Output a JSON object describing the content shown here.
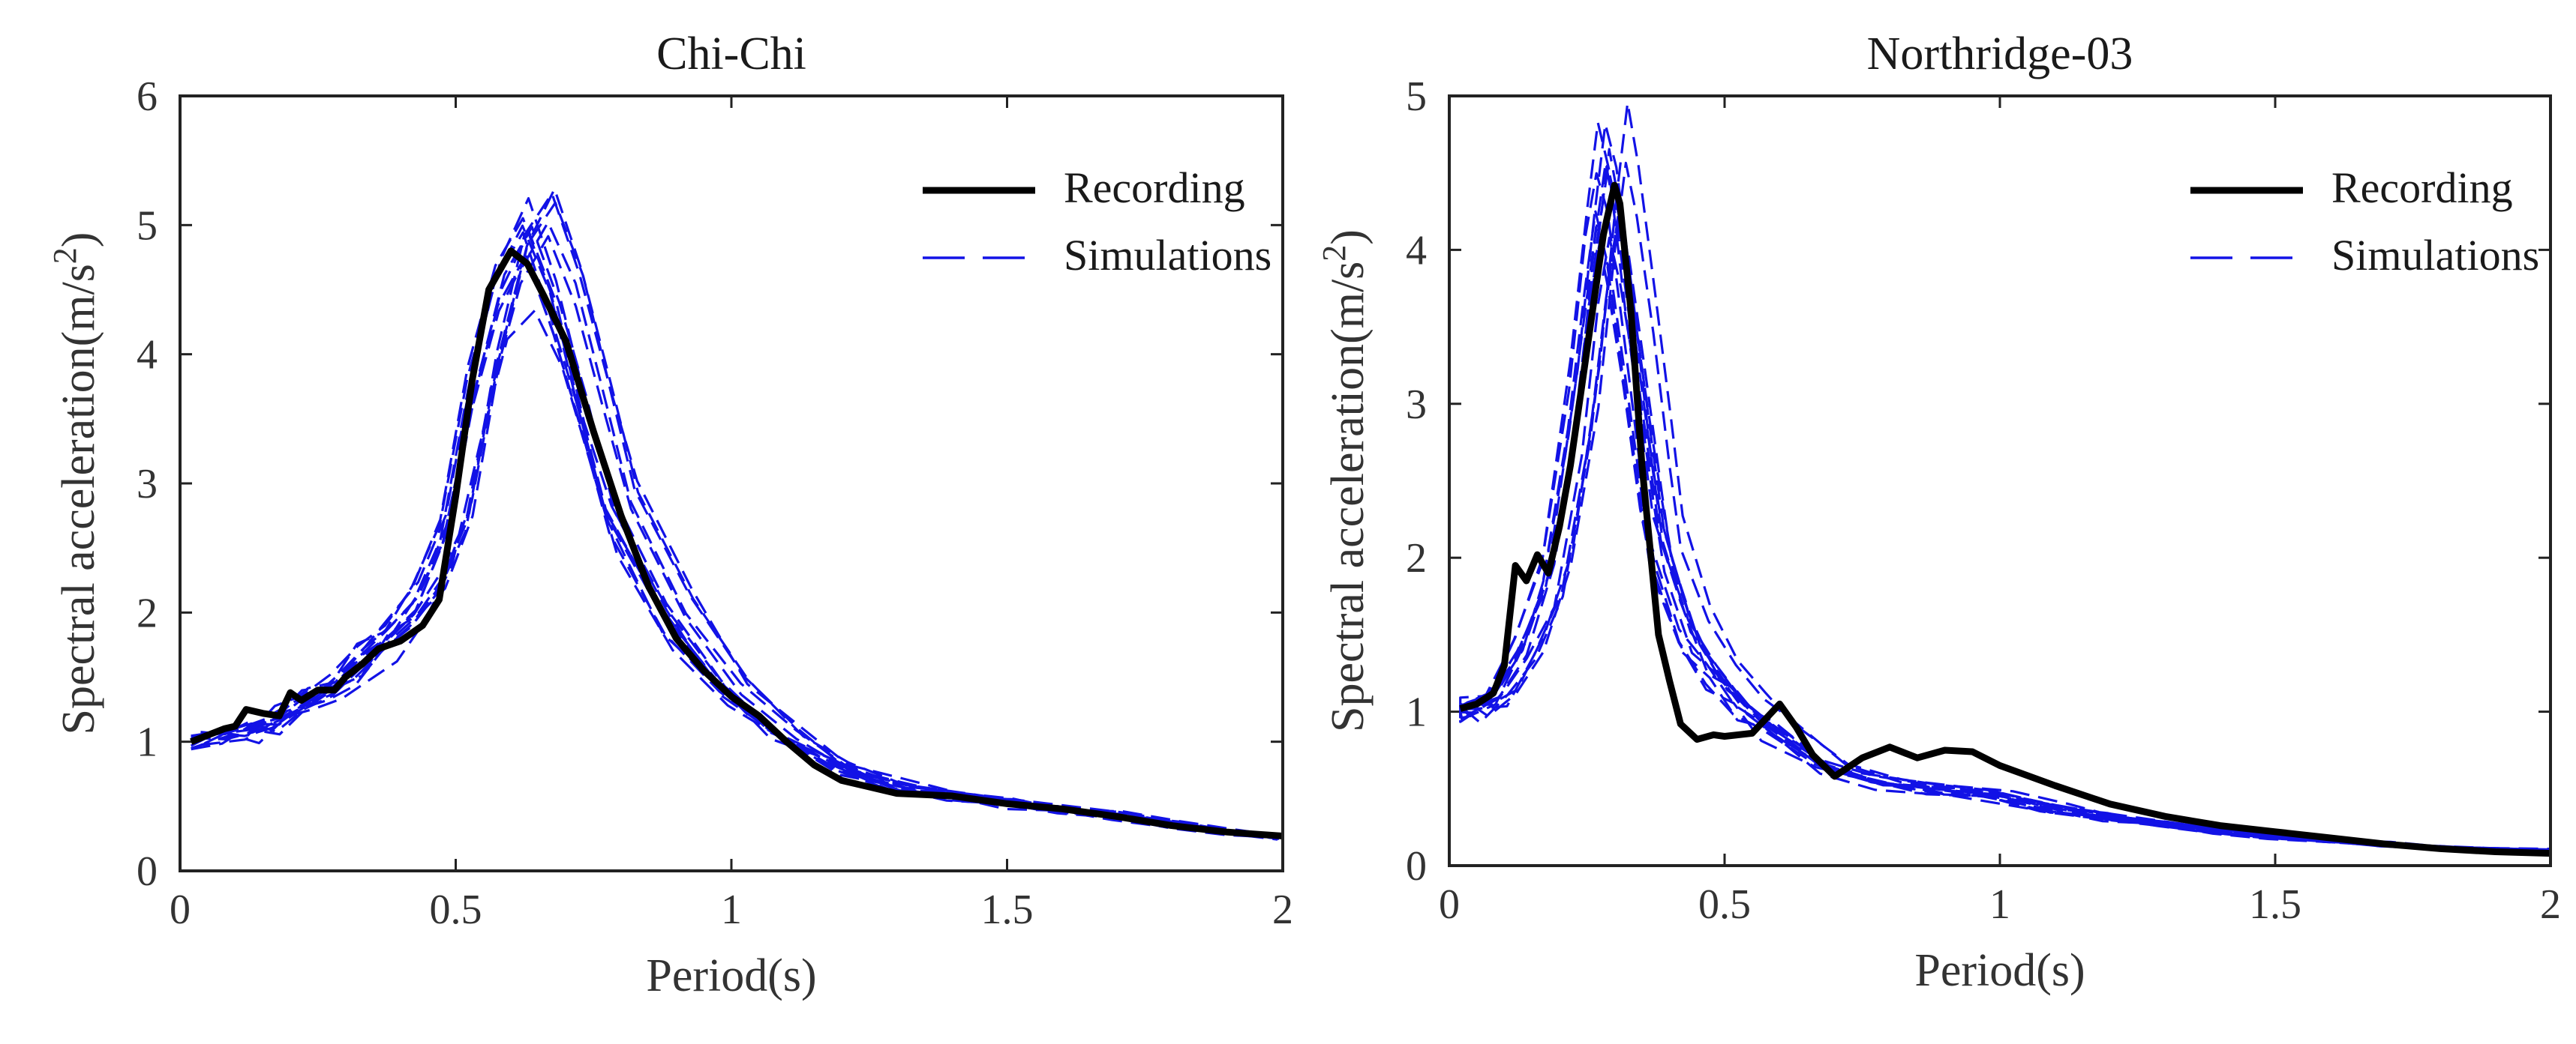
{
  "chart_data": [
    {
      "type": "line",
      "title": "Chi-Chi",
      "xlabel": "Period(s)",
      "ylabel": "Spectral acceleration(m/s",
      "ylabel_sup": "2",
      "ylabel_close": ")",
      "xlim": [
        0,
        2
      ],
      "ylim": [
        0,
        6
      ],
      "xticks": [
        0,
        0.5,
        1,
        1.5,
        2
      ],
      "xtick_labels": [
        "0",
        "0.5",
        "1",
        "1.5",
        "2"
      ],
      "yticks": [
        0,
        1,
        2,
        3,
        4,
        5,
        6
      ],
      "ytick_labels": [
        "0",
        "1",
        "2",
        "3",
        "4",
        "5",
        "6"
      ],
      "legend": {
        "position": "top-right",
        "entries": [
          "Recording",
          "Simulations"
        ]
      },
      "series": [
        {
          "name": "Recording",
          "style": "solid",
          "x": [
            0.02,
            0.05,
            0.08,
            0.1,
            0.12,
            0.15,
            0.18,
            0.2,
            0.22,
            0.25,
            0.28,
            0.3,
            0.33,
            0.36,
            0.4,
            0.44,
            0.47,
            0.5,
            0.53,
            0.56,
            0.6,
            0.63,
            0.66,
            0.7,
            0.75,
            0.8,
            0.85,
            0.9,
            0.95,
            1.0,
            1.05,
            1.1,
            1.15,
            1.2,
            1.3,
            1.4,
            1.5,
            1.6,
            1.7,
            1.8,
            1.9,
            2.0
          ],
          "y": [
            1.0,
            1.05,
            1.1,
            1.12,
            1.25,
            1.22,
            1.2,
            1.38,
            1.32,
            1.4,
            1.4,
            1.5,
            1.6,
            1.72,
            1.78,
            1.9,
            2.1,
            2.9,
            3.8,
            4.5,
            4.8,
            4.7,
            4.45,
            4.1,
            3.4,
            2.75,
            2.2,
            1.8,
            1.55,
            1.35,
            1.2,
            1.0,
            0.82,
            0.7,
            0.6,
            0.58,
            0.52,
            0.48,
            0.42,
            0.35,
            0.3,
            0.27
          ]
        },
        {
          "name": "Simulations",
          "style": "dashed",
          "x": [
            0.02,
            0.1,
            0.15,
            0.2,
            0.25,
            0.3,
            0.35,
            0.4,
            0.45,
            0.5,
            0.55,
            0.6,
            0.65,
            0.7,
            0.75,
            0.8,
            0.9,
            1.0,
            1.1,
            1.2,
            1.3,
            1.4,
            1.5,
            1.6,
            1.7,
            1.8,
            1.9,
            2.0
          ],
          "y": [
            1.0,
            1.05,
            1.08,
            1.2,
            1.35,
            1.45,
            1.65,
            1.85,
            2.1,
            2.6,
            3.7,
            4.5,
            4.85,
            4.3,
            3.5,
            2.75,
            1.95,
            1.4,
            1.05,
            0.8,
            0.65,
            0.58,
            0.52,
            0.47,
            0.42,
            0.36,
            0.3,
            0.26
          ]
        }
      ]
    },
    {
      "type": "line",
      "title": "Northridge-03",
      "xlabel": "Period(s)",
      "ylabel": "Spectral acceleration(m/s",
      "ylabel_sup": "2",
      "ylabel_close": ")",
      "xlim": [
        0,
        2
      ],
      "ylim": [
        0,
        5
      ],
      "xticks": [
        0,
        0.5,
        1,
        1.5,
        2
      ],
      "xtick_labels": [
        "0",
        "0.5",
        "1",
        "1.5",
        "2"
      ],
      "yticks": [
        0,
        1,
        2,
        3,
        4,
        5
      ],
      "ytick_labels": [
        "0",
        "1",
        "2",
        "3",
        "4",
        "5"
      ],
      "legend": {
        "position": "top-right",
        "entries": [
          "Recording",
          "Simulations"
        ]
      },
      "series": [
        {
          "name": "Recording",
          "style": "solid",
          "x": [
            0.02,
            0.05,
            0.08,
            0.1,
            0.12,
            0.14,
            0.16,
            0.18,
            0.2,
            0.22,
            0.24,
            0.26,
            0.28,
            0.3,
            0.31,
            0.33,
            0.35,
            0.38,
            0.4,
            0.42,
            0.45,
            0.48,
            0.5,
            0.55,
            0.6,
            0.63,
            0.66,
            0.7,
            0.75,
            0.8,
            0.85,
            0.9,
            0.95,
            1.0,
            1.1,
            1.2,
            1.3,
            1.4,
            1.5,
            1.6,
            1.7,
            1.8,
            1.9,
            2.0
          ],
          "y": [
            1.02,
            1.05,
            1.12,
            1.3,
            1.95,
            1.85,
            2.02,
            1.9,
            2.2,
            2.6,
            3.1,
            3.6,
            4.1,
            4.42,
            4.3,
            3.6,
            2.6,
            1.5,
            1.2,
            0.92,
            0.82,
            0.85,
            0.84,
            0.86,
            1.05,
            0.9,
            0.72,
            0.58,
            0.7,
            0.77,
            0.7,
            0.75,
            0.74,
            0.65,
            0.52,
            0.4,
            0.32,
            0.26,
            0.22,
            0.18,
            0.14,
            0.11,
            0.09,
            0.08
          ]
        },
        {
          "name": "Simulations",
          "style": "dashed",
          "x": [
            0.02,
            0.05,
            0.1,
            0.15,
            0.2,
            0.25,
            0.28,
            0.3,
            0.32,
            0.35,
            0.38,
            0.4,
            0.45,
            0.5,
            0.55,
            0.6,
            0.7,
            0.8,
            0.9,
            1.0,
            1.1,
            1.2,
            1.3,
            1.4,
            1.5,
            1.6,
            1.7,
            1.8,
            1.9,
            2.0
          ],
          "y": [
            1.0,
            1.02,
            1.1,
            1.4,
            1.9,
            3.0,
            4.0,
            4.5,
            4.2,
            3.4,
            2.6,
            2.1,
            1.55,
            1.25,
            1.05,
            0.9,
            0.65,
            0.55,
            0.5,
            0.45,
            0.38,
            0.32,
            0.27,
            0.23,
            0.19,
            0.16,
            0.14,
            0.12,
            0.11,
            0.1
          ]
        }
      ]
    }
  ]
}
